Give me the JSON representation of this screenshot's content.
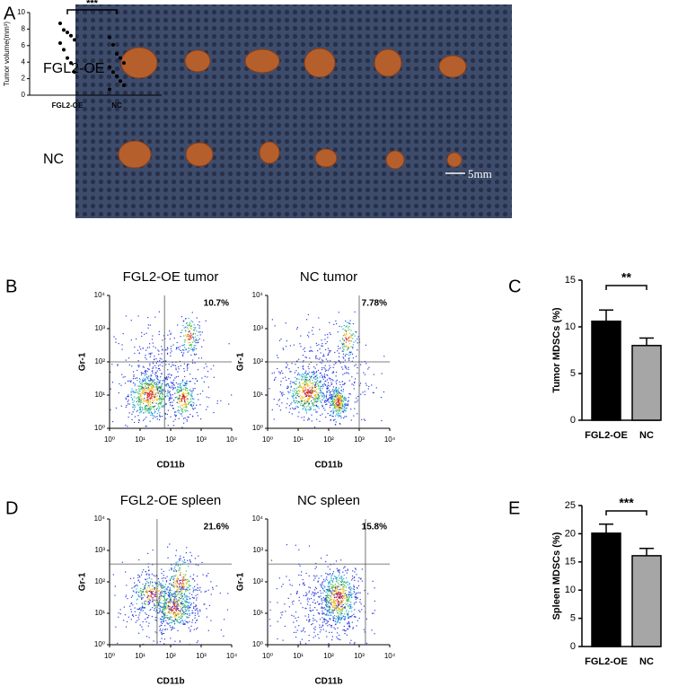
{
  "panel_labels": [
    "A",
    "B",
    "C",
    "D",
    "E"
  ],
  "photo": {
    "row_labels": [
      "FGL2-OE",
      "NC"
    ],
    "scale_bar": "5mm"
  },
  "chart_data": [
    {
      "type": "scatter",
      "y_label": "Tumor volume(mm³)",
      "categories": [
        "FGL2-OE",
        "NC"
      ],
      "values": [
        [
          8.7,
          7.9,
          7.6,
          7.2,
          6.7,
          6.3,
          5.5,
          4.5,
          3.9,
          2.8
        ],
        [
          7.0,
          6.1,
          5.0,
          4.5,
          3.9,
          3.4,
          2.8,
          2.3,
          1.7,
          1.2,
          0.7
        ]
      ],
      "ylim": [
        0,
        10
      ],
      "yticks": [
        0,
        2,
        4,
        6,
        8,
        10
      ],
      "significance": "***"
    },
    {
      "type": "flow",
      "title": "FGL2-OE tumor",
      "percent_label": "10.7%",
      "x_label": "CD11b",
      "y_label": "Gr-1",
      "log_scale": true,
      "xlim": [
        1,
        10000
      ],
      "ylim": [
        1,
        10000
      ],
      "xticks": [
        {
          "value": 1,
          "label": "10⁰"
        },
        {
          "value": 10,
          "label": "10¹"
        },
        {
          "value": 100,
          "label": "10²"
        },
        {
          "value": 1000,
          "label": "10³"
        },
        {
          "value": 10000,
          "label": "10⁴"
        }
      ],
      "yticks": [
        {
          "value": 1,
          "label": "10⁰"
        },
        {
          "value": 10,
          "label": "10¹"
        },
        {
          "value": 100,
          "label": "10²"
        },
        {
          "value": 1000,
          "label": "10³"
        },
        {
          "value": 10000,
          "label": "10⁴"
        }
      ],
      "gate": [
        63,
        100
      ]
    },
    {
      "type": "flow",
      "title": "NC tumor",
      "percent_label": "7.78%",
      "x_label": "CD11b",
      "y_label": "Gr-1",
      "log_scale": true,
      "xlim": [
        1,
        10000
      ],
      "ylim": [
        1,
        10000
      ],
      "xticks": [
        {
          "value": 1,
          "label": "10⁰"
        },
        {
          "value": 10,
          "label": "10¹"
        },
        {
          "value": 100,
          "label": "10²"
        },
        {
          "value": 1000,
          "label": "10³"
        },
        {
          "value": 10000,
          "label": "10⁴"
        }
      ],
      "yticks": [
        {
          "value": 1,
          "label": "10⁰"
        },
        {
          "value": 10,
          "label": "10¹"
        },
        {
          "value": 100,
          "label": "10²"
        },
        {
          "value": 1000,
          "label": "10³"
        },
        {
          "value": 10000,
          "label": "10⁴"
        }
      ],
      "gate": [
        1000,
        100
      ]
    },
    {
      "type": "flow",
      "title": "FGL2-OE spleen",
      "percent_label": "21.6%",
      "x_label": "CD11b",
      "y_label": "Gr-1",
      "log_scale": true,
      "xlim": [
        1,
        10000
      ],
      "ylim": [
        1,
        10000
      ],
      "xticks": [
        {
          "value": 1,
          "label": "10⁰"
        },
        {
          "value": 10,
          "label": "10¹"
        },
        {
          "value": 100,
          "label": "10²"
        },
        {
          "value": 1000,
          "label": "10³"
        },
        {
          "value": 10000,
          "label": "10⁴"
        }
      ],
      "yticks": [
        {
          "value": 1,
          "label": "10⁰"
        },
        {
          "value": 10,
          "label": "10¹"
        },
        {
          "value": 100,
          "label": "10²"
        },
        {
          "value": 1000,
          "label": "10³"
        },
        {
          "value": 10000,
          "label": "10⁴"
        }
      ],
      "gate": [
        36,
        370
      ]
    },
    {
      "type": "flow",
      "title": "NC spleen",
      "percent_label": "15.8%",
      "x_label": "CD11b",
      "y_label": "Gr-1",
      "log_scale": true,
      "xlim": [
        1,
        10000
      ],
      "ylim": [
        1,
        10000
      ],
      "xticks": [
        {
          "value": 1,
          "label": "10⁰"
        },
        {
          "value": 10,
          "label": "10¹"
        },
        {
          "value": 100,
          "label": "10²"
        },
        {
          "value": 1000,
          "label": "10³"
        },
        {
          "value": 10000,
          "label": "10⁴"
        }
      ],
      "yticks": [
        {
          "value": 1,
          "label": "10⁰"
        },
        {
          "value": 10,
          "label": "10¹"
        },
        {
          "value": 100,
          "label": "10²"
        },
        {
          "value": 1000,
          "label": "10³"
        },
        {
          "value": 10000,
          "label": "10⁴"
        }
      ],
      "gate": [
        1600,
        370
      ]
    },
    {
      "type": "bar",
      "y_label": "Tumor MDSCs (%)",
      "categories": [
        "FGL2-OE",
        "NC"
      ],
      "values": [
        10.6,
        8.0
      ],
      "errors": [
        1.2,
        0.8
      ],
      "colors": [
        "#000000",
        "#a6a6a6"
      ],
      "ylim": [
        0,
        15
      ],
      "yticks": [
        0,
        5,
        10,
        15
      ],
      "significance": "**"
    },
    {
      "type": "bar",
      "y_label": "Spleen MDSCs (%)",
      "categories": [
        "FGL2-OE",
        "NC"
      ],
      "values": [
        20.1,
        16.1
      ],
      "errors": [
        1.6,
        1.3
      ],
      "colors": [
        "#000000",
        "#a6a6a6"
      ],
      "ylim": [
        0,
        25
      ],
      "yticks": [
        0,
        5,
        10,
        15,
        20,
        25
      ],
      "significance": "***"
    }
  ]
}
